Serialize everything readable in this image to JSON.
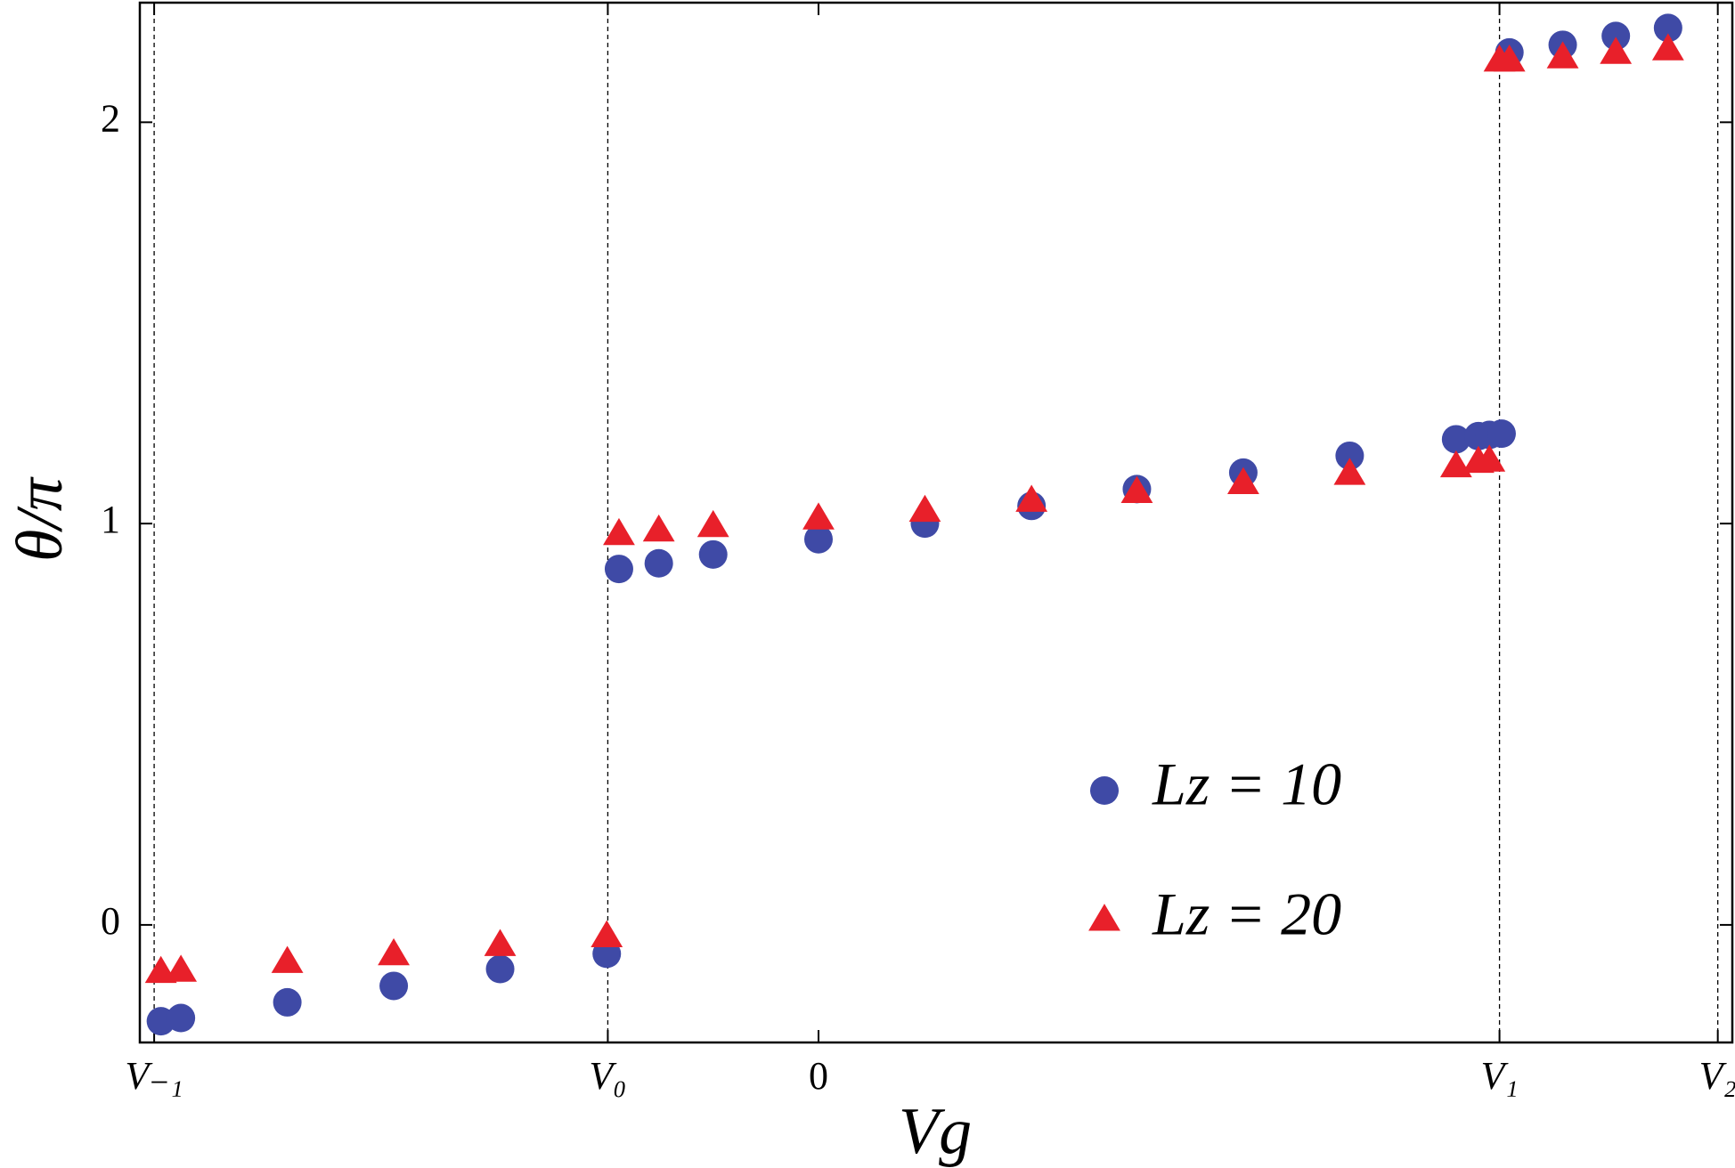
{
  "chart_data": {
    "type": "scatter",
    "xlabel": "Vg",
    "ylabel": "θ/π",
    "xlim": [
      -3.221,
      4.337
    ],
    "ylim": [
      -0.293,
      2.298
    ],
    "xticks": [
      {
        "value": -3.153,
        "label": "V₋₁"
      },
      {
        "value": -1.0,
        "label": "V₀"
      },
      0,
      {
        "value": 3.232,
        "label": "V₁"
      },
      {
        "value": 4.268,
        "label": "V₂"
      }
    ],
    "yticks": [
      0,
      1,
      2
    ],
    "vlines": [
      -3.153,
      -1.0,
      3.232,
      4.268
    ],
    "legend": "lower right",
    "series": [
      {
        "name": "Lz = 10",
        "marker": "circle",
        "color": "#3f4aa6",
        "x": [
          -3.121,
          -3.026,
          -2.521,
          -2.016,
          -1.511,
          -1.005,
          -0.947,
          -0.758,
          -0.5,
          0,
          0.505,
          1.011,
          1.511,
          2.016,
          2.521,
          3.026,
          3.132,
          3.184,
          3.242,
          3.279,
          3.532,
          3.784,
          4.032
        ],
        "values": [
          -0.24,
          -0.232,
          -0.193,
          -0.152,
          -0.11,
          -0.072,
          0.887,
          0.901,
          0.923,
          0.961,
          1.0,
          1.044,
          1.086,
          1.127,
          1.169,
          1.21,
          1.218,
          1.221,
          1.224,
          2.174,
          2.193,
          2.215,
          2.235
        ]
      },
      {
        "name": "Lz = 20",
        "marker": "triangle",
        "color": "#e8202a",
        "x": [
          -3.121,
          -3.026,
          -2.521,
          -2.016,
          -1.511,
          -1.005,
          -0.947,
          -0.758,
          -0.5,
          0,
          0.505,
          1.011,
          1.511,
          2.016,
          2.521,
          3.026,
          3.132,
          3.184,
          3.232,
          3.279,
          3.532,
          3.784,
          4.032
        ],
        "values": [
          -0.119,
          -0.116,
          -0.094,
          -0.075,
          -0.052,
          -0.03,
          0.972,
          0.981,
          0.992,
          1.011,
          1.03,
          1.055,
          1.077,
          1.099,
          1.122,
          1.141,
          1.152,
          1.155,
          2.152,
          2.152,
          2.16,
          2.171,
          2.18
        ]
      }
    ]
  }
}
